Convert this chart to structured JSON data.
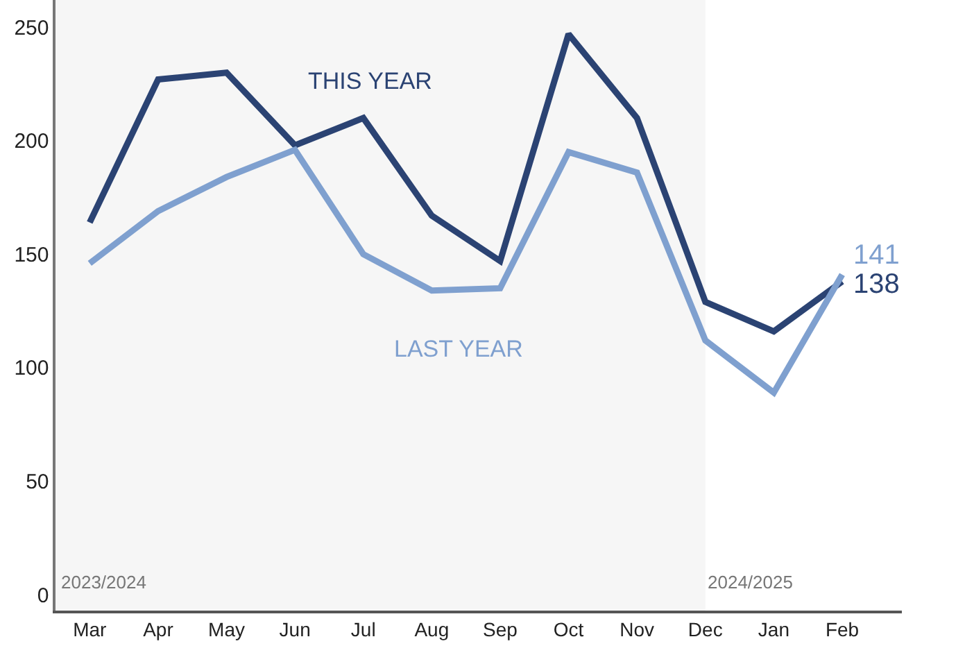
{
  "chart_data": {
    "type": "line",
    "categories": [
      "Mar",
      "Apr",
      "May",
      "Jun",
      "Jul",
      "Aug",
      "Sep",
      "Oct",
      "Nov",
      "Dec",
      "Jan",
      "Feb"
    ],
    "series": [
      {
        "name": "THIS YEAR",
        "color": "#2b4373",
        "values": [
          164,
          227,
          230,
          198,
          210,
          167,
          147,
          247,
          210,
          129,
          116,
          138
        ],
        "value_labels": [
          null,
          null,
          null,
          null,
          null,
          null,
          null,
          null,
          null,
          null,
          null,
          "138"
        ]
      },
      {
        "name": "LAST YEAR",
        "color": "#7fa0cf",
        "values": [
          146,
          169,
          184,
          196,
          150,
          134,
          135,
          195,
          186,
          112,
          89,
          141
        ],
        "value_labels": [
          null,
          null,
          null,
          null,
          null,
          null,
          null,
          null,
          null,
          null,
          null,
          "141"
        ]
      }
    ],
    "ylim": [
      -7,
      262
    ],
    "yticks": [
      0,
      50,
      100,
      150,
      200,
      250
    ],
    "bands": [
      {
        "axis": "x",
        "from": "Mar",
        "to": "Dec",
        "label": "2023/2024",
        "color": "#f6f6f6"
      }
    ],
    "annotations": [
      {
        "text": "2024/2025",
        "x": "Dec",
        "y": 0
      }
    ],
    "grid": false,
    "legend": false,
    "marker": "none",
    "line_style": "solid"
  }
}
